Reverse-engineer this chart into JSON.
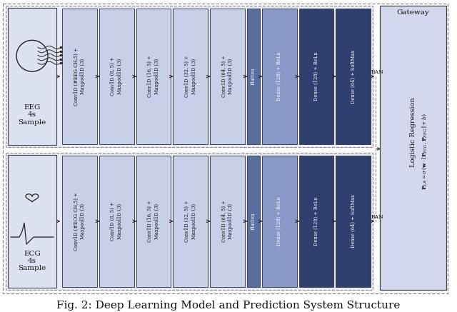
{
  "title": "Fig. 2: Deep Learning Model and Prediction System Structure",
  "title_fontsize": 11,
  "bg_color": "#ffffff",
  "eeg_label": "EEG\n4s\nSample",
  "ecg_label": "ECG\n4s\nSample",
  "conv_blocks_eeg": [
    "Conv1D (#EEG CH,5) +\nMaxpool1D (3)",
    "Conv1D (8, 5) +\nMaxpool1D (3)",
    "Conv1D (16, 5) +\nMaxpool1D (3)",
    "Conv1D (32, 5) +\nMaxpool1D (3)",
    "Conv1D (64, 5) +\nMaxpool1D (3)"
  ],
  "conv_blocks_ecg": [
    "Conv1D (#ECG CH,5) +\nMaxpool1D (3)",
    "Conv1D (8, 5) +\nMaxpool1D (3)",
    "Conv1D (16, 5) +\nMaxpool1D (3)",
    "Conv1D (32, 5) +\nMaxpool1D (3)",
    "Conv1D (64, 5) +\nMaxpool1D (3)"
  ],
  "flatten_label": "Flatten",
  "dense_blocks": [
    "Dense (128) + ReLu",
    "Dense (128) + ReLu",
    "Dense (64) + SoftMax"
  ],
  "color_light_blue": "#c8cfe8",
  "color_mid_blue": "#8898c8",
  "color_flatten": "#5a6ea0",
  "color_dense1": "#4a5e90",
  "color_dense2": "#2e3f70",
  "color_dense3": "#2e3f70",
  "color_icon_bg": "#dce2f0",
  "color_row_bg": "#e8eaf5",
  "color_outer_bg": "#f0f2fa",
  "color_gw_bg": "#d4d8ee",
  "gateway_label": "Gateway",
  "ban_label": "BAN",
  "logistic_label": "Logistic Regression",
  "dashed_color": "#888888",
  "edge_color": "#444444"
}
